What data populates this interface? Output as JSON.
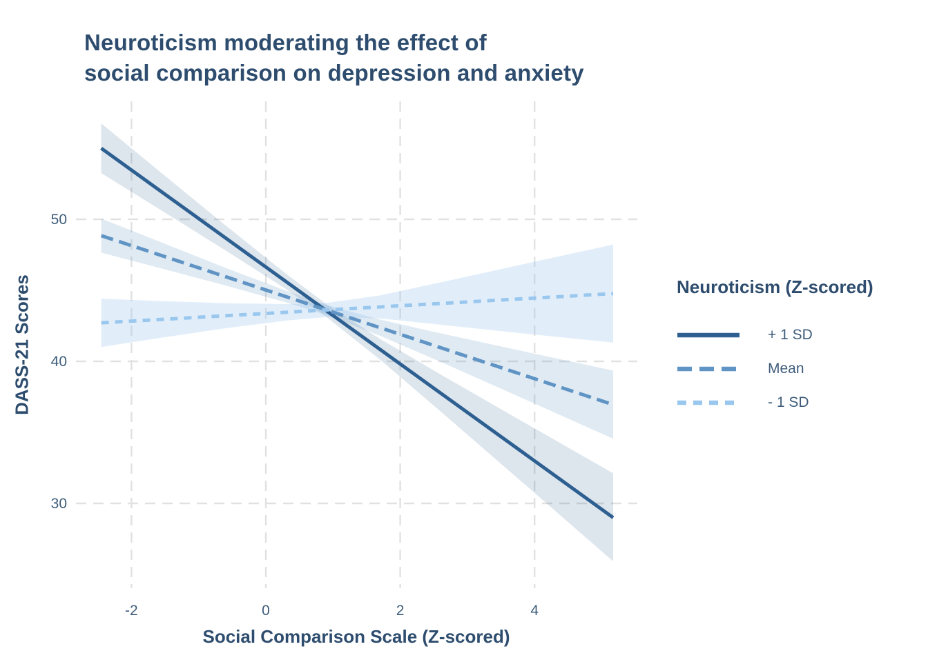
{
  "colors": {
    "title_text": "#2e4d6e",
    "tick_text": "#3e5c7a",
    "gridline": "#e1e1e1",
    "background": "#ffffff"
  },
  "chart_data": {
    "type": "line",
    "title": "Neuroticism moderating the effect of\nsocial comparison on depression and anxiety",
    "xlabel": "Social Comparison Scale (Z-scored)",
    "ylabel": "DASS-21 Scores",
    "x_ticks": [
      -2,
      0,
      2,
      4
    ],
    "y_ticks": [
      30,
      40,
      50
    ],
    "xlim": [
      -2.8,
      5.5
    ],
    "ylim": [
      24.5,
      58.5
    ],
    "grid": "dashed",
    "legend": {
      "title": "Neuroticism (Z-scored)",
      "position": "right"
    },
    "series": [
      {
        "name": "+ 1 SD",
        "line_style": "solid",
        "color": "#2d5f91",
        "ribbon_color": "rgba(45,95,145,0.16)",
        "x": [
          -2.45,
          5.17
        ],
        "y": [
          55.0,
          29.0
        ],
        "ci_x": [
          -2.45,
          -1.6,
          -0.6,
          0.3,
          0.9,
          1.7,
          2.6,
          3.9,
          5.17
        ],
        "ci_upper": [
          56.75,
          53.44,
          49.57,
          46.17,
          44.03,
          41.58,
          39.08,
          35.55,
          32.12
        ],
        "ci_lower": [
          53.25,
          50.76,
          47.81,
          45.09,
          43.13,
          40.12,
          36.48,
          31.15,
          25.92
        ]
      },
      {
        "name": "Mean",
        "line_style": "dashed",
        "color": "#6094c4",
        "ribbon_color": "rgba(96,148,196,0.20)",
        "x": [
          -2.45,
          5.17
        ],
        "y": [
          48.85,
          36.95
        ],
        "ci_x": [
          -2.45,
          -1.6,
          -0.6,
          0.3,
          0.9,
          1.7,
          2.6,
          3.9,
          5.17
        ],
        "ci_upper": [
          50.05,
          48.46,
          46.58,
          44.97,
          43.97,
          42.94,
          41.97,
          40.64,
          39.35
        ],
        "ci_lower": [
          47.65,
          46.6,
          45.34,
          44.15,
          43.27,
          41.8,
          39.97,
          37.24,
          34.55
        ]
      },
      {
        "name": "- 1 SD",
        "line_style": "dotted",
        "color": "#9ac7ee",
        "ribbon_color": "rgba(154,199,238,0.30)",
        "x": [
          -2.45,
          5.17
        ],
        "y": [
          42.71,
          44.77
        ],
        "ci_x": [
          -2.45,
          -1.6,
          -0.6,
          0.3,
          0.9,
          1.7,
          2.6,
          3.9,
          5.17
        ],
        "ci_upper": [
          44.41,
          44.25,
          44.09,
          44.03,
          44.11,
          44.64,
          45.56,
          46.91,
          48.22
        ],
        "ci_lower": [
          41.01,
          41.63,
          42.33,
          42.87,
          43.11,
          43.02,
          42.58,
          41.93,
          41.32
        ]
      }
    ]
  }
}
